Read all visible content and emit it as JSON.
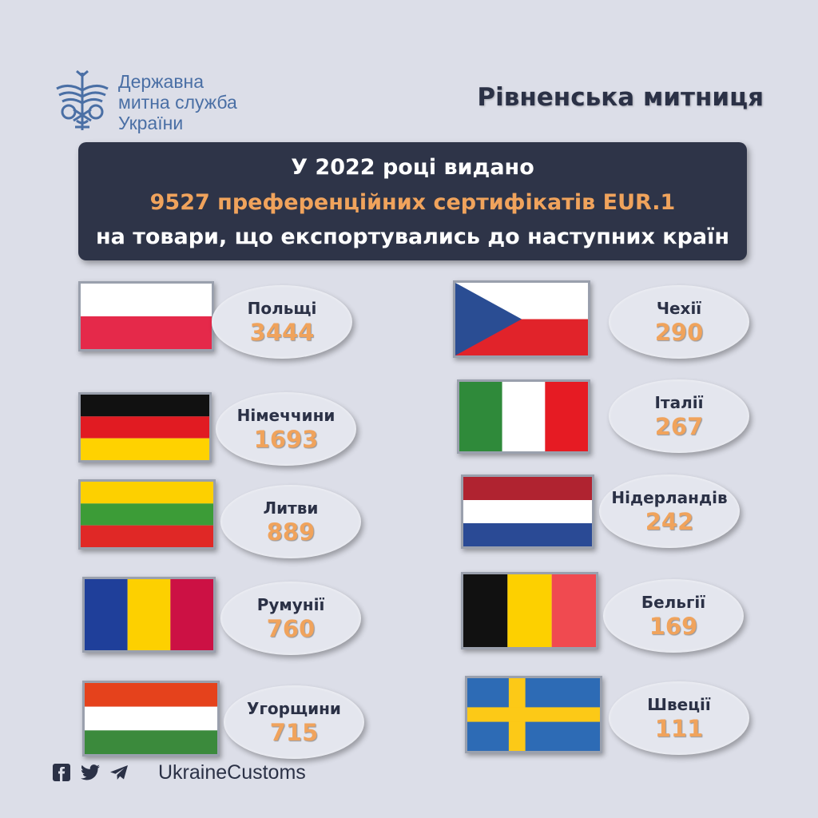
{
  "logo": {
    "line1": "Державна",
    "line2": "митна служба",
    "line3": "України"
  },
  "office_title": "Рівненська митниця",
  "banner": {
    "line1": "У 2022 році видано",
    "line2": "9527 преференційних сертифікатів EUR.1",
    "line3": "на товари, що експортувались до наступних країн"
  },
  "countries": [
    {
      "name": "Польщі",
      "count": "3444"
    },
    {
      "name": "Німеччини",
      "count": "1693"
    },
    {
      "name": "Литви",
      "count": "889"
    },
    {
      "name": "Румунії",
      "count": "760"
    },
    {
      "name": "Угорщини",
      "count": "715"
    },
    {
      "name": "Чехії",
      "count": "290"
    },
    {
      "name": "Італії",
      "count": "267"
    },
    {
      "name": "Нідерландів",
      "count": "242"
    },
    {
      "name": "Бельгії",
      "count": "169"
    },
    {
      "name": "Швеції",
      "count": "111"
    }
  ],
  "footer": {
    "icons": [
      "facebook-icon",
      "twitter-icon",
      "telegram-icon"
    ],
    "handle": "UkraineCustoms"
  },
  "colors": {
    "background": "#dcdee8",
    "banner": "#2e3448",
    "accent": "#f0a35c",
    "logo_blue": "#4a6fa5"
  }
}
